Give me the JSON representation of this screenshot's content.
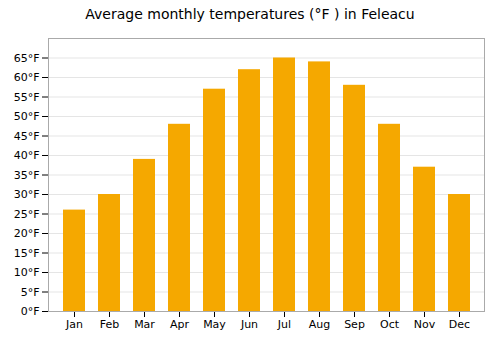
{
  "chart_data": {
    "type": "bar",
    "title": "Average monthly temperatures (°F ) in Feleacu",
    "categories": [
      "Jan",
      "Feb",
      "Mar",
      "Apr",
      "May",
      "Jun",
      "Jul",
      "Aug",
      "Sep",
      "Oct",
      "Nov",
      "Dec"
    ],
    "values": [
      26,
      30,
      39,
      48,
      57,
      62,
      65,
      64,
      58,
      48,
      37,
      30
    ],
    "color": "#F5A800",
    "ylim": [
      0,
      70
    ],
    "yticks": [
      {
        "value": 0,
        "label": "0°F"
      },
      {
        "value": 5,
        "label": "5°F"
      },
      {
        "value": 10,
        "label": "10°F"
      },
      {
        "value": 15,
        "label": "15°F"
      },
      {
        "value": 20,
        "label": "20°F"
      },
      {
        "value": 25,
        "label": "25°F"
      },
      {
        "value": 30,
        "label": "30°F"
      },
      {
        "value": 35,
        "label": "35°F"
      },
      {
        "value": 40,
        "label": "40°F"
      },
      {
        "value": 45,
        "label": "45°F"
      },
      {
        "value": 50,
        "label": "50°F"
      },
      {
        "value": 55,
        "label": "55°F"
      },
      {
        "value": 60,
        "label": "60°F"
      },
      {
        "value": 65,
        "label": "65°F"
      }
    ],
    "grid": true
  }
}
